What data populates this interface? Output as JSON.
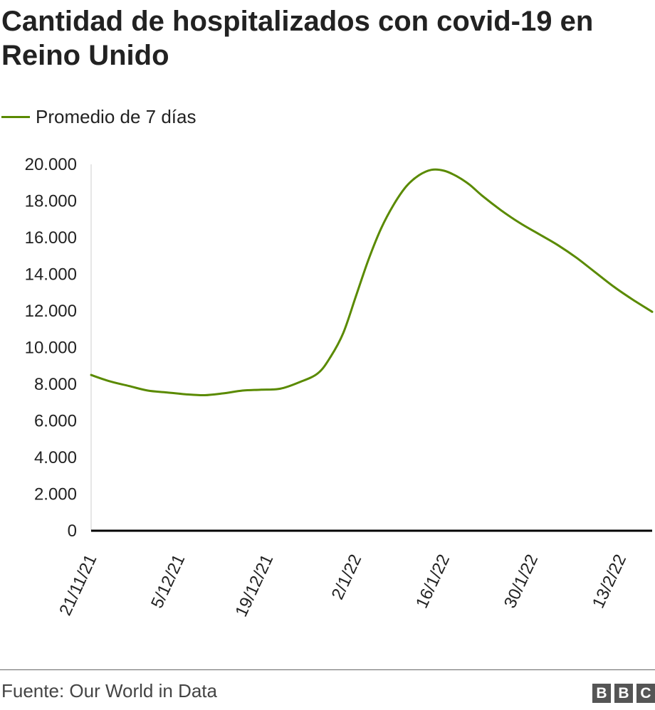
{
  "title": "Cantidad de hospitalizados con covid-19 en Reino Unido",
  "legend": {
    "label": "Promedio de 7 días"
  },
  "source": "Fuente: Our World in Data",
  "logo": {
    "letters": [
      "B",
      "B",
      "C"
    ]
  },
  "colors": {
    "series": "#5a8a00",
    "axis": "#000000",
    "grid_axis": "#cccccc",
    "text": "#222222",
    "logo": "#555555"
  },
  "chart_data": {
    "type": "line",
    "title": "Cantidad de hospitalizados con covid-19 en Reino Unido",
    "xlabel": "",
    "ylabel": "",
    "grid": false,
    "legend_position": "top-left",
    "x_ticks": [
      "21/11/21",
      "5/12/21",
      "19/12/21",
      "2/1/22",
      "16/1/22",
      "30/1/22",
      "13/2/22"
    ],
    "y_ticks": [
      "0",
      "2.000",
      "4.000",
      "6.000",
      "8.000",
      "10.000",
      "12.000",
      "14.000",
      "16.000",
      "18.000",
      "20.000"
    ],
    "ylim": [
      0,
      20000
    ],
    "xlim": [
      "2021-11-21",
      "2022-02-18"
    ],
    "series": [
      {
        "name": "Promedio de 7 días",
        "color": "#5a8a00",
        "x": [
          "2021-11-21",
          "2021-11-24",
          "2021-11-27",
          "2021-11-30",
          "2021-12-03",
          "2021-12-06",
          "2021-12-09",
          "2021-12-12",
          "2021-12-15",
          "2021-12-18",
          "2021-12-21",
          "2021-12-24",
          "2021-12-27",
          "2021-12-29",
          "2021-12-31",
          "2022-01-02",
          "2022-01-04",
          "2022-01-06",
          "2022-01-08",
          "2022-01-10",
          "2022-01-12",
          "2022-01-14",
          "2022-01-16",
          "2022-01-18",
          "2022-01-20",
          "2022-01-22",
          "2022-01-25",
          "2022-01-28",
          "2022-01-31",
          "2022-02-03",
          "2022-02-06",
          "2022-02-09",
          "2022-02-12",
          "2022-02-15",
          "2022-02-18"
        ],
        "values": [
          8500,
          8150,
          7900,
          7650,
          7550,
          7450,
          7400,
          7500,
          7650,
          7700,
          7750,
          8100,
          8600,
          9500,
          10800,
          12800,
          14800,
          16500,
          17800,
          18800,
          19400,
          19700,
          19650,
          19350,
          18900,
          18300,
          17500,
          16800,
          16200,
          15600,
          14900,
          14100,
          13300,
          12600,
          11950
        ]
      }
    ]
  }
}
